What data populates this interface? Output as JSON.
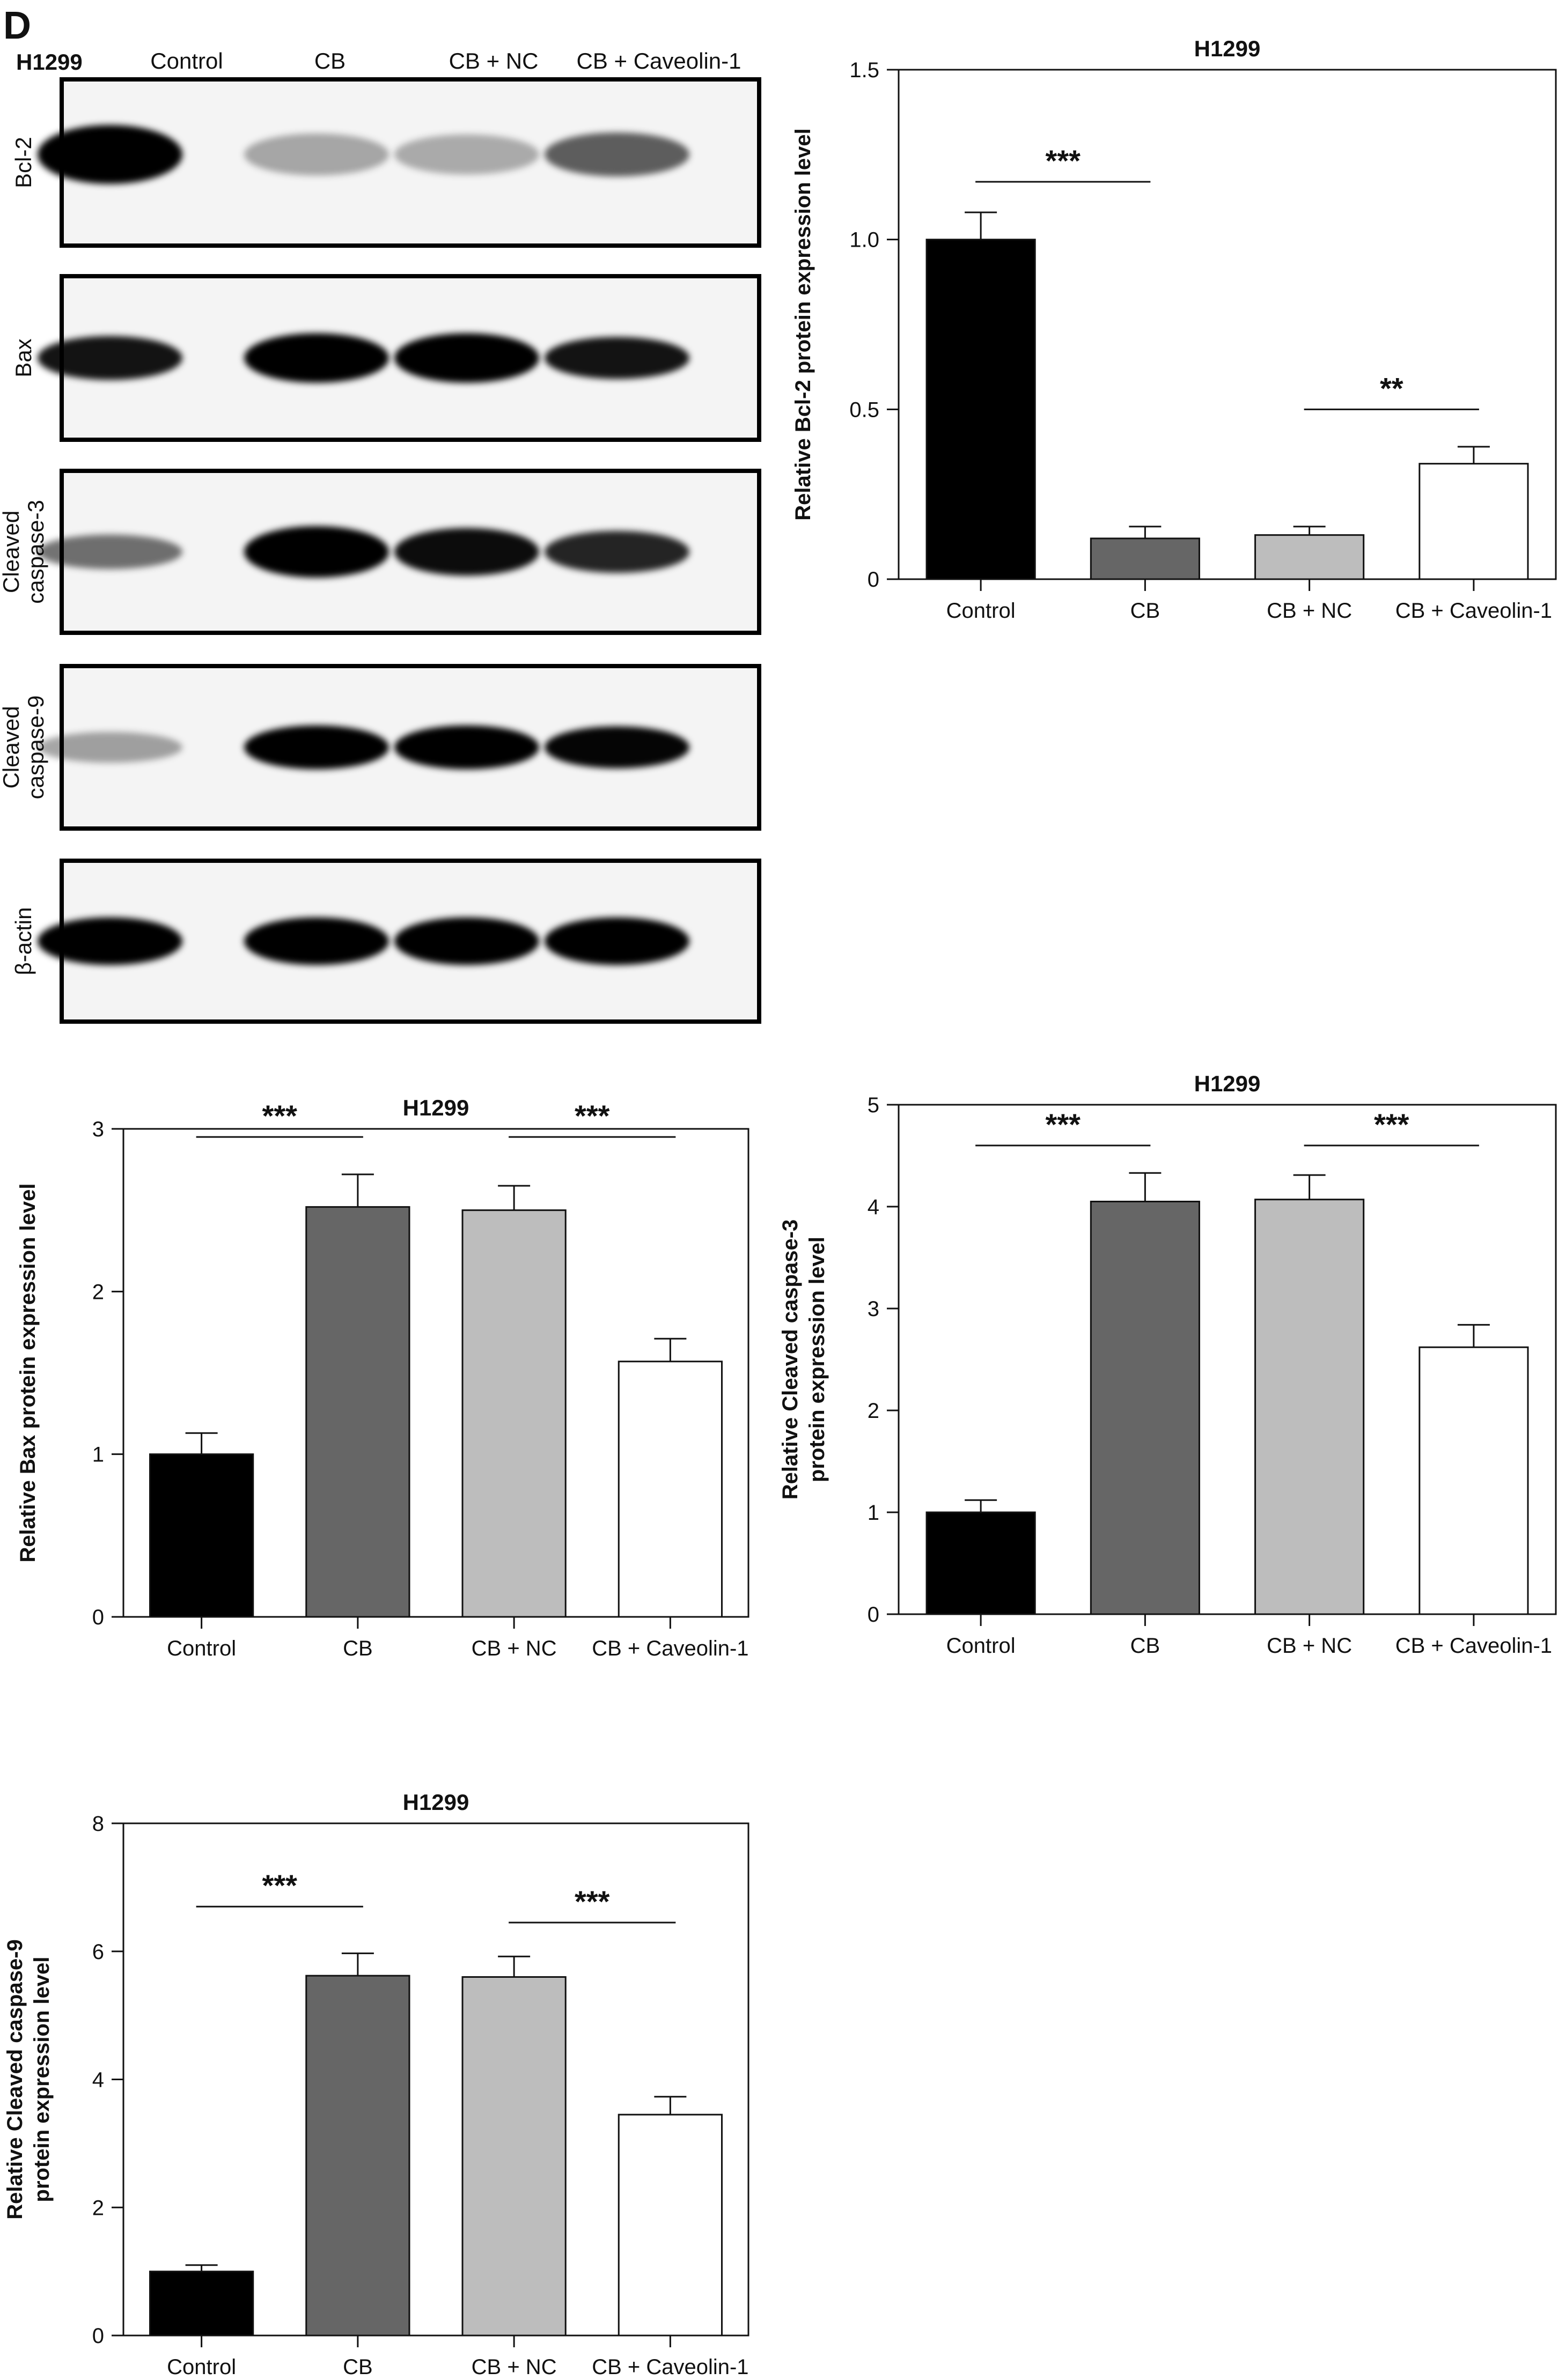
{
  "panel_label": "D",
  "blot": {
    "cell_line": "H1299",
    "lanes": [
      "Control",
      "CB",
      "CB + NC",
      "CB + Caveolin-1"
    ],
    "rows": [
      {
        "label": [
          "Bcl-2"
        ],
        "intensity": [
          1.0,
          0.32,
          0.3,
          0.62
        ],
        "thickness": [
          1.0,
          0.55,
          0.5,
          0.6
        ]
      },
      {
        "label": [
          "Bax"
        ],
        "intensity": [
          0.92,
          1.0,
          1.0,
          0.92
        ],
        "thickness": [
          0.6,
          0.75,
          0.75,
          0.55
        ]
      },
      {
        "label": [
          "Cleaved",
          "caspase-3"
        ],
        "intensity": [
          0.55,
          1.0,
          0.95,
          0.85
        ],
        "thickness": [
          0.35,
          0.8,
          0.7,
          0.55
        ]
      },
      {
        "label": [
          "Cleaved",
          "caspase-9"
        ],
        "intensity": [
          0.35,
          1.0,
          1.0,
          0.98
        ],
        "thickness": [
          0.25,
          0.6,
          0.6,
          0.55
        ]
      },
      {
        "label": [
          "β-actin"
        ],
        "intensity": [
          1.0,
          1.0,
          1.0,
          1.0
        ],
        "thickness": [
          0.7,
          0.7,
          0.7,
          0.7
        ]
      }
    ]
  },
  "colors": {
    "bar_fills": [
      "#000000",
      "#666666",
      "#bdbdbd",
      "#ffffff"
    ],
    "axis": "#111111"
  },
  "chart_data": [
    {
      "type": "bar",
      "title": "H1299",
      "ylabel": [
        "Relative Bcl-2 protein expression level"
      ],
      "categories": [
        "Control",
        "CB",
        "CB + NC",
        "CB + Caveolin-1"
      ],
      "values": [
        1.0,
        0.12,
        0.13,
        0.34
      ],
      "errors": [
        0.08,
        0.035,
        0.025,
        0.05
      ],
      "ylim": [
        0,
        1.5
      ],
      "yticks": [
        0,
        0.5,
        1.0,
        1.5
      ],
      "ytick_labels": [
        "0",
        "0.5",
        "1.0",
        "1.5"
      ],
      "annotations": [
        {
          "text": "***",
          "from": 0,
          "to": 1,
          "y": 1.17
        },
        {
          "text": "**",
          "from": 2,
          "to": 3,
          "y": 0.5
        }
      ]
    },
    {
      "type": "bar",
      "title": "H1299",
      "ylabel": [
        "Relative Bax protein expression level"
      ],
      "categories": [
        "Control",
        "CB",
        "CB + NC",
        "CB + Caveolin-1"
      ],
      "values": [
        1.0,
        2.52,
        2.5,
        1.57
      ],
      "errors": [
        0.13,
        0.2,
        0.15,
        0.14
      ],
      "ylim": [
        0,
        3
      ],
      "yticks": [
        0,
        1,
        2,
        3
      ],
      "ytick_labels": [
        "0",
        "1",
        "2",
        "3"
      ],
      "annotations": [
        {
          "text": "***",
          "from": 0,
          "to": 1,
          "y": 2.95
        },
        {
          "text": "***",
          "from": 2,
          "to": 3,
          "y": 2.95
        }
      ]
    },
    {
      "type": "bar",
      "title": "H1299",
      "ylabel": [
        "Relative Cleaved caspase-3",
        "protein expression level"
      ],
      "categories": [
        "Control",
        "CB",
        "CB + NC",
        "CB + Caveolin-1"
      ],
      "values": [
        1.0,
        4.05,
        4.07,
        2.62
      ],
      "errors": [
        0.12,
        0.28,
        0.24,
        0.22
      ],
      "ylim": [
        0,
        5
      ],
      "yticks": [
        0,
        1,
        2,
        3,
        4,
        5
      ],
      "ytick_labels": [
        "0",
        "1",
        "2",
        "3",
        "4",
        "5"
      ],
      "annotations": [
        {
          "text": "***",
          "from": 0,
          "to": 1,
          "y": 4.6
        },
        {
          "text": "***",
          "from": 2,
          "to": 3,
          "y": 4.6
        }
      ]
    },
    {
      "type": "bar",
      "title": "H1299",
      "ylabel": [
        "Relative Cleaved caspase-9",
        "protein expression level"
      ],
      "categories": [
        "Control",
        "CB",
        "CB + NC",
        "CB + Caveolin-1"
      ],
      "values": [
        1.0,
        5.62,
        5.6,
        3.45
      ],
      "errors": [
        0.1,
        0.35,
        0.32,
        0.28
      ],
      "ylim": [
        0,
        8
      ],
      "yticks": [
        0,
        2,
        4,
        6,
        8
      ],
      "ytick_labels": [
        "0",
        "2",
        "4",
        "6",
        "8"
      ],
      "annotations": [
        {
          "text": "***",
          "from": 0,
          "to": 1,
          "y": 6.7
        },
        {
          "text": "***",
          "from": 2,
          "to": 3,
          "y": 6.45
        }
      ]
    }
  ]
}
